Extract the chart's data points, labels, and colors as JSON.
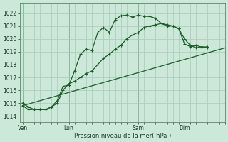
{
  "title": "Pression niveau de la mer( hPa )",
  "background_color": "#cce8d8",
  "grid_color": "#a8cbb8",
  "line_color": "#1a5c2a",
  "ylim": [
    1013.5,
    1022.8
  ],
  "yticks": [
    1014,
    1015,
    1016,
    1017,
    1018,
    1019,
    1020,
    1021,
    1022
  ],
  "day_labels": [
    "Ven",
    "Lun",
    "Sam",
    "Dim"
  ],
  "day_positions": [
    0,
    8,
    20,
    28
  ],
  "xlim": [
    -0.5,
    35
  ],
  "line1_x": [
    0,
    1,
    2,
    3,
    4,
    5,
    6,
    7,
    8,
    9,
    10,
    11,
    12,
    13,
    14,
    15,
    16,
    17,
    18,
    19,
    20,
    21,
    22,
    23,
    24,
    25,
    26,
    27,
    28,
    29,
    30,
    31,
    32
  ],
  "line1_y": [
    1015.0,
    1014.7,
    1014.5,
    1014.5,
    1014.5,
    1014.7,
    1015.2,
    1016.3,
    1016.4,
    1017.5,
    1018.8,
    1019.2,
    1019.1,
    1020.5,
    1020.9,
    1020.5,
    1021.5,
    1021.8,
    1021.85,
    1021.7,
    1021.85,
    1021.75,
    1021.75,
    1021.6,
    1021.2,
    1021.1,
    1021.0,
    1020.8,
    1019.6,
    1019.4,
    1019.5,
    1019.35,
    1019.4
  ],
  "line2_x": [
    0,
    1,
    2,
    3,
    4,
    5,
    6,
    7,
    8,
    9,
    10,
    11,
    12,
    13,
    14,
    15,
    16,
    17,
    18,
    19,
    20,
    21,
    22,
    23,
    24,
    25,
    26,
    27,
    28,
    29,
    30,
    31,
    32
  ],
  "line2_y": [
    1014.8,
    1014.5,
    1014.5,
    1014.5,
    1014.5,
    1014.7,
    1015.0,
    1016.0,
    1016.5,
    1016.7,
    1017.0,
    1017.3,
    1017.5,
    1018.0,
    1018.5,
    1018.8,
    1019.2,
    1019.5,
    1020.0,
    1020.3,
    1020.5,
    1020.9,
    1021.0,
    1021.1,
    1021.2,
    1021.0,
    1021.0,
    1020.8,
    1020.0,
    1019.5,
    1019.3,
    1019.4,
    1019.3
  ],
  "line3_x": [
    0,
    35
  ],
  "line3_y": [
    1014.8,
    1019.3
  ],
  "label_fontsize": 5.5,
  "title_fontsize": 6.0
}
